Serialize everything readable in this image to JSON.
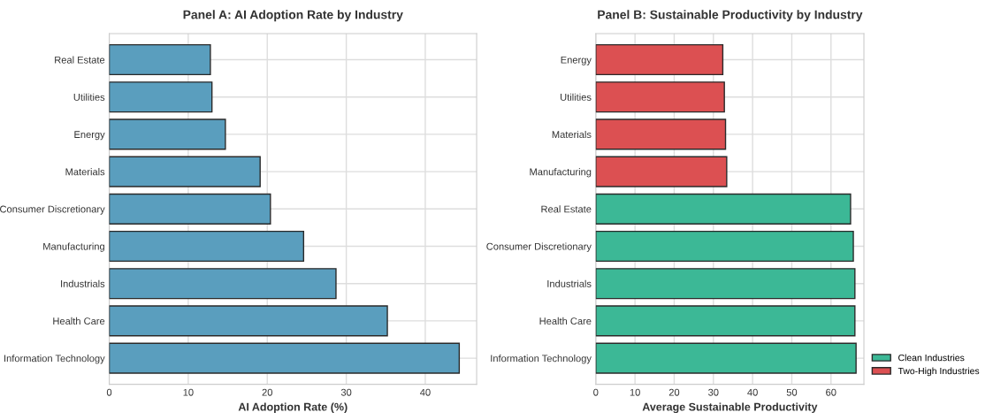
{
  "chart_data": [
    {
      "type": "bar",
      "orientation": "horizontal",
      "title": "Panel A: AI Adoption Rate by Industry",
      "xlabel": "AI Adoption Rate (%)",
      "categories": [
        "Real Estate",
        "Utilities",
        "Energy",
        "Materials",
        "Consumer Discretionary",
        "Manufacturing",
        "Industrials",
        "Health Care",
        "Information Technology"
      ],
      "series": [
        {
          "color": "#5a9ebe",
          "values": [
            12.8,
            13.0,
            14.7,
            19.1,
            20.4,
            24.6,
            28.7,
            35.2,
            44.3
          ]
        }
      ],
      "xlim": [
        0,
        46.5
      ],
      "xticks": [
        0,
        10,
        20,
        30,
        40
      ],
      "grid": true
    },
    {
      "type": "bar",
      "orientation": "horizontal",
      "title": "Panel B: Sustainable Productivity by Industry",
      "xlabel": "Average Sustainable Productivity",
      "categories": [
        "Energy",
        "Utilities",
        "Materials",
        "Manufacturing",
        "Real Estate",
        "Consumer Discretionary",
        "Industrials",
        "Health Care",
        "Information Technology"
      ],
      "series": [
        {
          "name": "Clean Industries",
          "color": "#3cb896",
          "values": [
            null,
            null,
            null,
            null,
            65.0,
            65.7,
            66.1,
            66.1,
            66.4
          ]
        },
        {
          "name": "Two-High Industries",
          "color": "#dc5052",
          "values": [
            32.4,
            32.8,
            33.1,
            33.4,
            null,
            null,
            null,
            null,
            null
          ]
        }
      ],
      "xlim": [
        0,
        68.4
      ],
      "xticks": [
        0,
        10,
        20,
        30,
        40,
        50,
        60
      ],
      "grid": true,
      "legend": "bottom right"
    }
  ]
}
